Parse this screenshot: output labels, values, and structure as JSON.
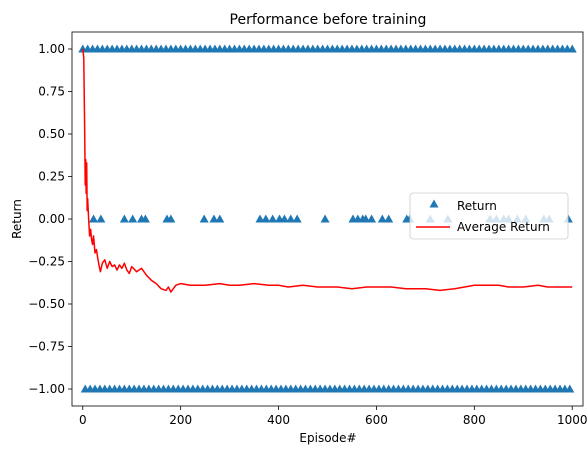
{
  "chart_data": {
    "type": "scatter",
    "title": "Performance before training",
    "xlabel": "Episode#",
    "ylabel": "Return",
    "xlim": [
      -22,
      1022
    ],
    "ylim": [
      -1.1,
      1.1
    ],
    "x_ticks": [
      0,
      200,
      400,
      600,
      800,
      1000
    ],
    "x_tick_labels": [
      "0",
      "200",
      "400",
      "600",
      "800",
      "1000"
    ],
    "y_ticks": [
      -1.0,
      -0.75,
      -0.5,
      -0.25,
      0.0,
      0.25,
      0.5,
      0.75,
      1.0
    ],
    "y_tick_labels": [
      "−1.00",
      "−0.75",
      "−0.50",
      "−0.25",
      "0.00",
      "0.25",
      "0.50",
      "0.75",
      "1.00"
    ],
    "grid": false,
    "legend_position": "center-right",
    "series": [
      {
        "name": "Return",
        "kind": "scatter",
        "marker": "triangle",
        "color": "#1f77b4",
        "x": [
          0,
          10,
          20,
          30,
          40,
          50,
          60,
          70,
          80,
          90,
          100,
          110,
          120,
          130,
          140,
          150,
          160,
          170,
          180,
          190,
          200,
          210,
          220,
          230,
          240,
          250,
          260,
          270,
          280,
          290,
          300,
          310,
          320,
          330,
          340,
          350,
          360,
          370,
          380,
          390,
          400,
          410,
          420,
          430,
          440,
          450,
          460,
          470,
          480,
          490,
          500,
          510,
          520,
          530,
          540,
          550,
          560,
          570,
          580,
          590,
          600,
          610,
          620,
          630,
          640,
          650,
          660,
          670,
          680,
          690,
          700,
          710,
          720,
          730,
          740,
          750,
          760,
          770,
          780,
          790,
          800,
          810,
          820,
          830,
          840,
          850,
          860,
          870,
          880,
          890,
          900,
          910,
          920,
          930,
          940,
          950,
          960,
          970,
          980,
          990,
          1000,
          5,
          15,
          25,
          35,
          45,
          55,
          65,
          75,
          85,
          95,
          105,
          115,
          125,
          135,
          145,
          155,
          165,
          175,
          185,
          195,
          205,
          215,
          225,
          235,
          245,
          255,
          265,
          275,
          285,
          295,
          305,
          315,
          325,
          335,
          345,
          355,
          365,
          375,
          385,
          395,
          405,
          415,
          425,
          435,
          445,
          455,
          465,
          475,
          485,
          495,
          505,
          515,
          525,
          535,
          545,
          555,
          565,
          575,
          585,
          595,
          605,
          615,
          625,
          635,
          645,
          655,
          665,
          675,
          685,
          695,
          705,
          715,
          725,
          735,
          745,
          755,
          765,
          775,
          785,
          795,
          805,
          815,
          825,
          835,
          845,
          855,
          865,
          875,
          885,
          895,
          905,
          915,
          925,
          935,
          945,
          955,
          965,
          975,
          985,
          995,
          22,
          37,
          85,
          102,
          120,
          128,
          172,
          180,
          248,
          268,
          280,
          362,
          374,
          388,
          402,
          412,
          425,
          438,
          495,
          552,
          562,
          572,
          578,
          590,
          612,
          625,
          662,
          668,
          710,
          746,
          832,
          845,
          860,
          870,
          888,
          905,
          942,
          953,
          992
        ],
        "y": [
          1,
          1,
          1,
          1,
          1,
          1,
          1,
          1,
          1,
          1,
          1,
          1,
          1,
          1,
          1,
          1,
          1,
          1,
          1,
          1,
          1,
          1,
          1,
          1,
          1,
          1,
          1,
          1,
          1,
          1,
          1,
          1,
          1,
          1,
          1,
          1,
          1,
          1,
          1,
          1,
          1,
          1,
          1,
          1,
          1,
          1,
          1,
          1,
          1,
          1,
          1,
          1,
          1,
          1,
          1,
          1,
          1,
          1,
          1,
          1,
          1,
          1,
          1,
          1,
          1,
          1,
          1,
          1,
          1,
          1,
          1,
          1,
          1,
          1,
          1,
          1,
          1,
          1,
          1,
          1,
          1,
          1,
          1,
          1,
          1,
          1,
          1,
          1,
          1,
          1,
          1,
          1,
          1,
          1,
          1,
          1,
          1,
          1,
          1,
          1,
          1,
          -1,
          -1,
          -1,
          -1,
          -1,
          -1,
          -1,
          -1,
          -1,
          -1,
          -1,
          -1,
          -1,
          -1,
          -1,
          -1,
          -1,
          -1,
          -1,
          -1,
          -1,
          -1,
          -1,
          -1,
          -1,
          -1,
          -1,
          -1,
          -1,
          -1,
          -1,
          -1,
          -1,
          -1,
          -1,
          -1,
          -1,
          -1,
          -1,
          -1,
          -1,
          -1,
          -1,
          -1,
          -1,
          -1,
          -1,
          -1,
          -1,
          -1,
          -1,
          -1,
          -1,
          -1,
          -1,
          -1,
          -1,
          -1,
          -1,
          -1,
          -1,
          -1,
          -1,
          -1,
          -1,
          -1,
          -1,
          -1,
          -1,
          -1,
          -1,
          -1,
          -1,
          -1,
          -1,
          -1,
          -1,
          -1,
          -1,
          -1,
          -1,
          -1,
          -1,
          -1,
          -1,
          -1,
          -1,
          -1,
          -1,
          -1,
          -1,
          -1,
          -1,
          -1,
          -1,
          -1,
          -1,
          -1,
          -1,
          -1,
          0,
          0,
          0,
          0,
          0,
          0,
          0,
          0,
          0,
          0,
          0,
          0,
          0,
          0,
          0,
          0,
          0,
          0,
          0,
          0,
          0,
          0,
          0,
          0,
          0,
          0,
          0,
          0,
          0,
          0,
          0,
          0,
          0,
          0,
          0,
          0,
          0,
          0,
          0
        ]
      },
      {
        "name": "Average Return",
        "kind": "line",
        "color": "#ff0000",
        "x": [
          0,
          2,
          4,
          5,
          6,
          7,
          8,
          9,
          10,
          12,
          14,
          16,
          18,
          20,
          22,
          25,
          28,
          30,
          33,
          36,
          40,
          45,
          50,
          55,
          60,
          65,
          70,
          75,
          80,
          85,
          90,
          95,
          100,
          110,
          120,
          130,
          140,
          150,
          160,
          170,
          175,
          180,
          190,
          200,
          220,
          250,
          280,
          300,
          320,
          350,
          380,
          400,
          420,
          450,
          480,
          500,
          520,
          550,
          580,
          600,
          630,
          660,
          700,
          730,
          760,
          780,
          800,
          830,
          850,
          870,
          900,
          930,
          950,
          970,
          1000
        ],
        "y": [
          1.0,
          0.95,
          0.5,
          0.2,
          0.35,
          0.15,
          0.33,
          0.05,
          0.12,
          0.0,
          -0.1,
          -0.06,
          -0.12,
          -0.15,
          -0.1,
          -0.2,
          -0.18,
          -0.22,
          -0.27,
          -0.31,
          -0.26,
          -0.24,
          -0.29,
          -0.25,
          -0.28,
          -0.27,
          -0.3,
          -0.27,
          -0.29,
          -0.26,
          -0.3,
          -0.32,
          -0.28,
          -0.31,
          -0.29,
          -0.33,
          -0.36,
          -0.38,
          -0.41,
          -0.42,
          -0.4,
          -0.43,
          -0.39,
          -0.38,
          -0.39,
          -0.39,
          -0.38,
          -0.39,
          -0.39,
          -0.38,
          -0.39,
          -0.39,
          -0.4,
          -0.39,
          -0.4,
          -0.4,
          -0.4,
          -0.41,
          -0.4,
          -0.4,
          -0.4,
          -0.41,
          -0.41,
          -0.42,
          -0.41,
          -0.4,
          -0.39,
          -0.39,
          -0.39,
          -0.4,
          -0.4,
          -0.39,
          -0.4,
          -0.4,
          -0.4
        ]
      }
    ]
  }
}
